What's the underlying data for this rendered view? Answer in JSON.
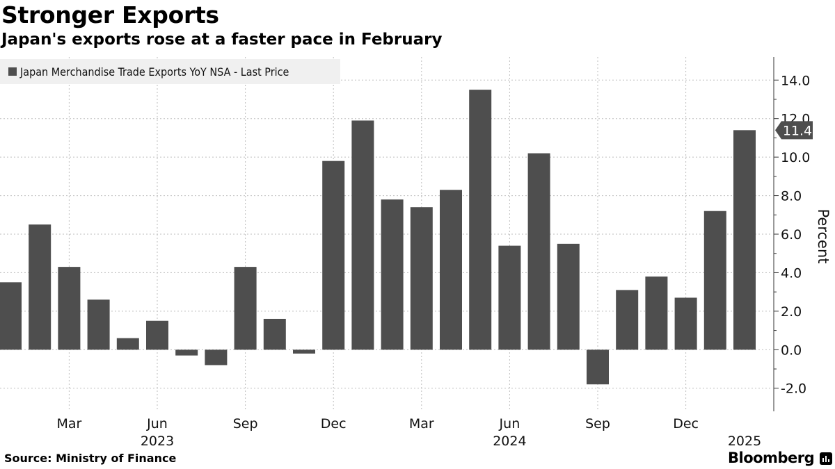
{
  "header": {
    "title": "Stronger Exports",
    "subtitle": "Japan's exports rose at a faster pace in February"
  },
  "footer": {
    "source": "Source: Ministry of Finance",
    "brand": "Bloomberg"
  },
  "colors": {
    "bar": "#4e4e4e",
    "last_value_marker": "#4e4e4e",
    "grid": "#bdbdbd"
  },
  "chart_data": {
    "type": "bar",
    "title": "Stronger Exports",
    "subtitle": "Japan's exports rose at a faster pace in February",
    "legend": [
      "Japan Merchandise Trade Exports YoY NSA - Last Price"
    ],
    "legend_position": "top-left",
    "ylabel": "Percent",
    "y_axis_side": "right",
    "ylim": [
      -3.2,
      15.2
    ],
    "yticks": [
      -2.0,
      0.0,
      2.0,
      4.0,
      6.0,
      8.0,
      10.0,
      12.0,
      14.0
    ],
    "ytick_labels": [
      "-2.0",
      "0.0",
      "2.0",
      "4.0",
      "6.0",
      "8.0",
      "10.0",
      "12.0",
      "14.0"
    ],
    "grid": true,
    "categories": [
      "Jan 2023",
      "Feb 2023",
      "Mar 2023",
      "Apr 2023",
      "May 2023",
      "Jun 2023",
      "Jul 2023",
      "Aug 2023",
      "Sep 2023",
      "Oct 2023",
      "Nov 2023",
      "Dec 2023",
      "Jan 2024",
      "Feb 2024",
      "Mar 2024",
      "Apr 2024",
      "May 2024",
      "Jun 2024",
      "Jul 2024",
      "Aug 2024",
      "Sep 2024",
      "Oct 2024",
      "Nov 2024",
      "Dec 2024",
      "Jan 2025",
      "Feb 2025"
    ],
    "series": [
      {
        "name": "Japan Merchandise Trade Exports YoY NSA - Last Price",
        "values": [
          3.5,
          6.5,
          4.3,
          2.6,
          0.6,
          1.5,
          -0.3,
          -0.8,
          4.3,
          1.6,
          -0.2,
          9.8,
          11.9,
          7.8,
          7.4,
          8.3,
          13.5,
          5.4,
          10.2,
          5.5,
          -1.8,
          3.1,
          3.8,
          2.7,
          7.2,
          11.4
        ]
      }
    ],
    "x_tick_labels": [
      {
        "category": "Mar 2023",
        "label": "Mar"
      },
      {
        "category": "Jun 2023",
        "label": "Jun"
      },
      {
        "category": "Sep 2023",
        "label": "Sep"
      },
      {
        "category": "Dec 2023",
        "label": "Dec"
      },
      {
        "category": "Mar 2024",
        "label": "Mar"
      },
      {
        "category": "Jun 2024",
        "label": "Jun"
      },
      {
        "category": "Sep 2024",
        "label": "Sep"
      },
      {
        "category": "Dec 2024",
        "label": "Dec"
      }
    ],
    "year_labels": [
      {
        "category": "Jun 2023",
        "label": "2023"
      },
      {
        "category": "Jun 2024",
        "label": "2024"
      },
      {
        "category": "Feb 2025",
        "label": "2025"
      }
    ],
    "last_value_label": "11.4"
  }
}
